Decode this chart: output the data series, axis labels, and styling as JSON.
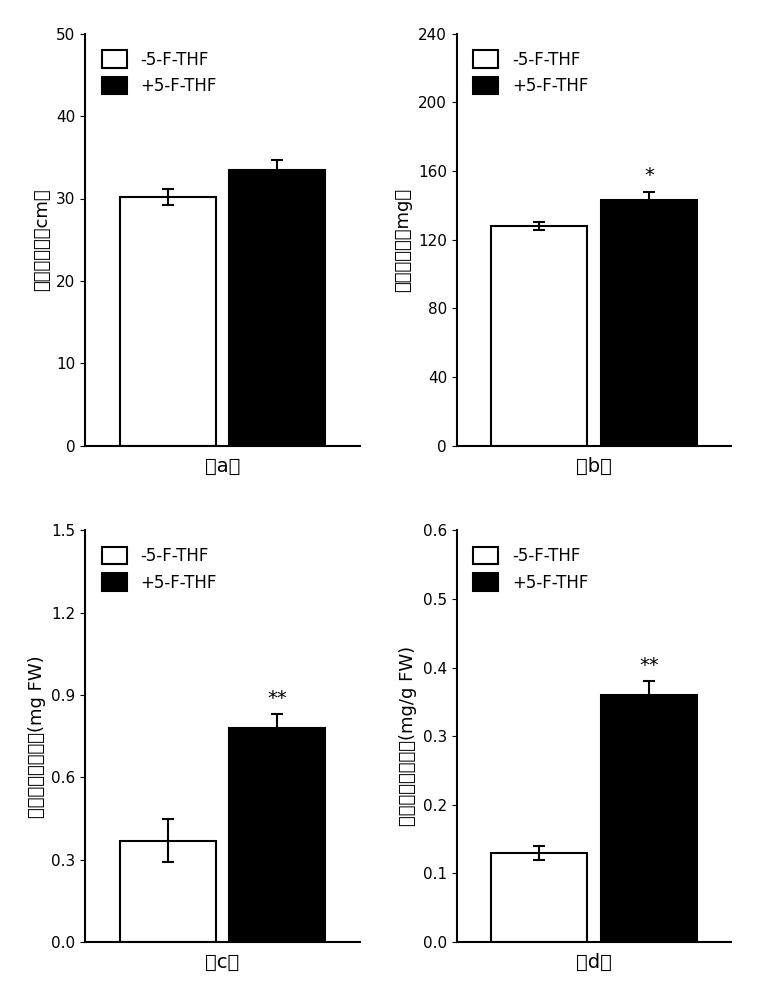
{
  "panels": [
    {
      "label": "（a）",
      "ylabel": "地上部高度（cm）",
      "ylim": [
        0,
        50
      ],
      "yticks": [
        0,
        10,
        20,
        30,
        40,
        50
      ],
      "bar_values": [
        30.2,
        33.5
      ],
      "bar_errors": [
        1.0,
        1.2
      ],
      "bar_colors": [
        "white",
        "black"
      ],
      "bar_edgecolors": [
        "black",
        "black"
      ],
      "significance": [
        "",
        ""
      ],
      "sig_fontsize": 14
    },
    {
      "label": "（b）",
      "ylabel": "地上部鲜重（mg）",
      "ylim": [
        0,
        240
      ],
      "yticks": [
        0,
        40,
        80,
        120,
        160,
        200,
        240
      ],
      "bar_values": [
        128,
        143
      ],
      "bar_errors": [
        2.5,
        5.0
      ],
      "bar_colors": [
        "white",
        "black"
      ],
      "bar_edgecolors": [
        "black",
        "black"
      ],
      "significance": [
        "",
        "*"
      ],
      "sig_fontsize": 14
    },
    {
      "label": "（c）",
      "ylabel": "地上部叶绿素含量(mg FW)",
      "ylim": [
        0,
        1.5
      ],
      "yticks": [
        0,
        0.3,
        0.6,
        0.9,
        1.2,
        1.5
      ],
      "bar_values": [
        0.37,
        0.78
      ],
      "bar_errors": [
        0.08,
        0.05
      ],
      "bar_colors": [
        "white",
        "black"
      ],
      "bar_edgecolors": [
        "black",
        "black"
      ],
      "significance": [
        "",
        "**"
      ],
      "sig_fontsize": 14
    },
    {
      "label": "（d）",
      "ylabel": "地上部可溶性蛋白(mg/g FW)",
      "ylim": [
        0,
        0.6
      ],
      "yticks": [
        0,
        0.1,
        0.2,
        0.3,
        0.4,
        0.5,
        0.6
      ],
      "bar_values": [
        0.13,
        0.36
      ],
      "bar_errors": [
        0.01,
        0.02
      ],
      "bar_colors": [
        "white",
        "black"
      ],
      "bar_edgecolors": [
        "black",
        "black"
      ],
      "significance": [
        "",
        "**"
      ],
      "sig_fontsize": 14
    }
  ],
  "legend_labels": [
    "-5-F-THF",
    "+5-F-THF"
  ],
  "legend_colors": [
    "white",
    "black"
  ],
  "bar_width": 0.35,
  "bar_positions": [
    0.3,
    0.7
  ],
  "xlim": [
    0,
    1.0
  ],
  "background_color": "white",
  "label_fontsize": 13,
  "tick_fontsize": 11,
  "panel_label_fontsize": 14,
  "legend_fontsize": 12
}
